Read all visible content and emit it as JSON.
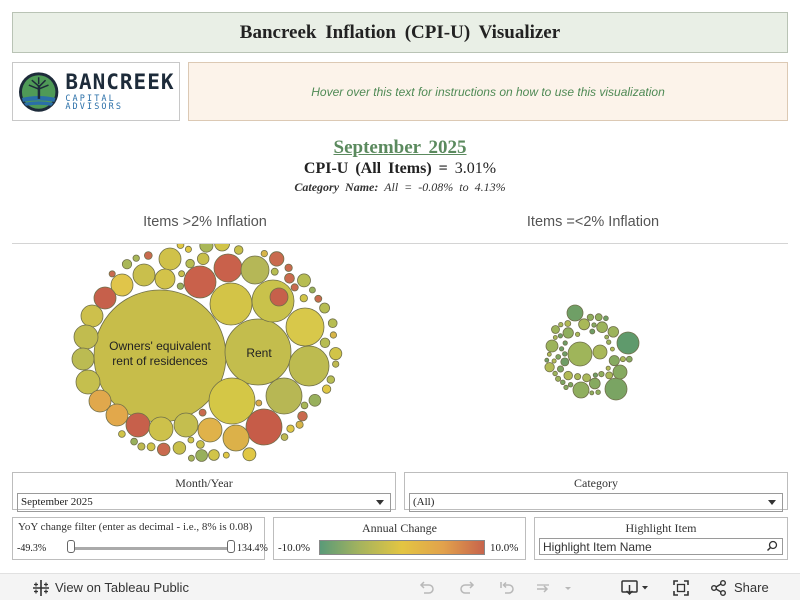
{
  "header": {
    "title": "Bancreek Inflation (CPI-U) Visualizer"
  },
  "logo": {
    "name": "BANCREEK",
    "tagline": "CAPITAL ADVISORS"
  },
  "instructions": {
    "text": "Hover over this text for instructions on how to use this visualization"
  },
  "summary": {
    "period": "September 2025",
    "cpi_label": "CPI-U (All Items) =",
    "cpi_value": "3.01%",
    "category_label": "Category Name:",
    "category_range": "All = -0.08% to 4.13%"
  },
  "sections": {
    "high": "Items >2% Inflation",
    "low": "Items =<2% Inflation"
  },
  "bubbles": {
    "largest_label_1": "Owners' equivalent",
    "largest_label_2": "rent of residences",
    "second_label": "Rent"
  },
  "filters": {
    "month_title": "Month/Year",
    "month_value": "September 2025",
    "category_title": "Category",
    "category_value": "(All)",
    "yoy_title": "YoY change filter (enter as decimal - i.e., 8% is 0.08)",
    "yoy_min": "-49.3%",
    "yoy_max": "134.4%",
    "legend_title": "Annual Change",
    "legend_min": "-10.0%",
    "legend_max": "10.0%",
    "legend_colors": [
      "#5a9a78",
      "#a7b45d",
      "#e3c542",
      "#e2a24c",
      "#c7644c"
    ],
    "highlight_title": "Highlight Item",
    "highlight_placeholder": "Highlight Item Name"
  },
  "toolbar": {
    "view_label": "View on Tableau Public",
    "share_label": "Share"
  },
  "icons": {
    "tableau": "tableau-logo-icon",
    "undo": "undo-icon",
    "redo": "redo-icon",
    "revert": "revert-icon",
    "refresh": "refresh-icon",
    "download": "download-icon",
    "fullscreen": "fullscreen-icon",
    "share": "share-icon",
    "search": "search-icon"
  }
}
